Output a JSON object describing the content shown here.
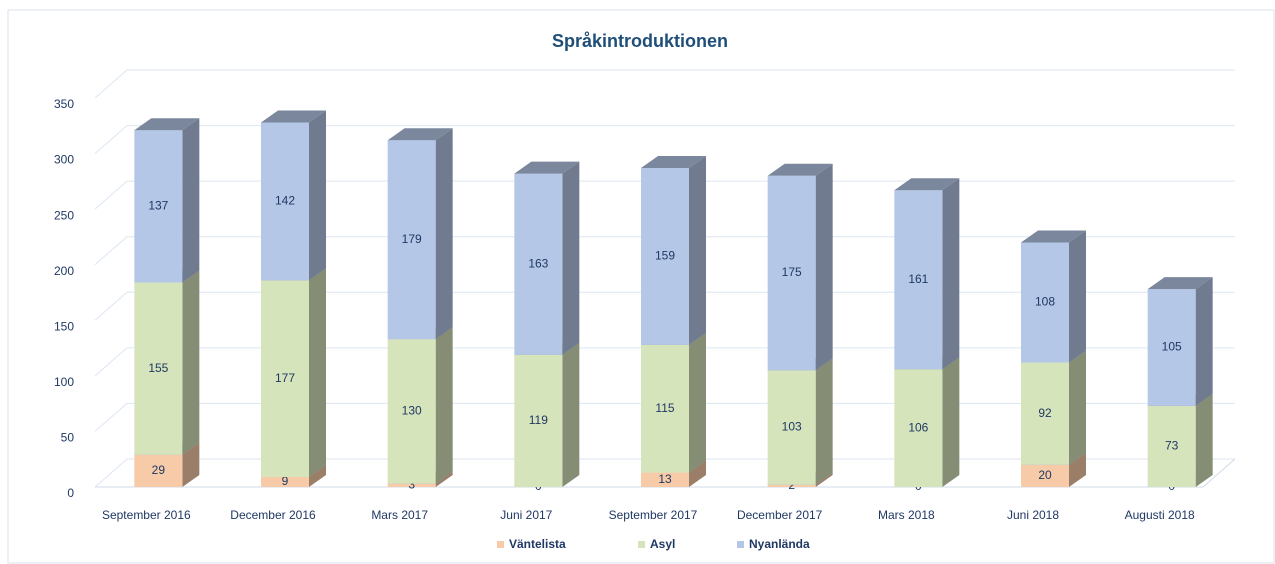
{
  "chart_data": {
    "type": "bar3d_stacked",
    "title": "Språkintroduktionen",
    "categories": [
      "September 2016",
      "December 2016",
      "Mars 2017",
      "Juni 2017",
      "September 2017",
      "December 2017",
      "Mars 2018",
      "Juni 2018",
      "Augusti 2018"
    ],
    "series": [
      {
        "name": "Väntelista",
        "color": "#f8cba8",
        "values": [
          29,
          9,
          3,
          0,
          13,
          2,
          0,
          20,
          0
        ]
      },
      {
        "name": "Asyl",
        "color": "#d6e4bc",
        "values": [
          155,
          177,
          130,
          119,
          115,
          103,
          106,
          92,
          73
        ]
      },
      {
        "name": "Nyanlända",
        "color": "#b4c7e7",
        "values": [
          137,
          142,
          179,
          163,
          159,
          175,
          161,
          108,
          105
        ]
      }
    ],
    "ylim": [
      0,
      350
    ],
    "yticks": [
      0,
      50,
      100,
      150,
      200,
      250,
      300,
      350
    ],
    "grid": true,
    "legend": "bottom"
  }
}
